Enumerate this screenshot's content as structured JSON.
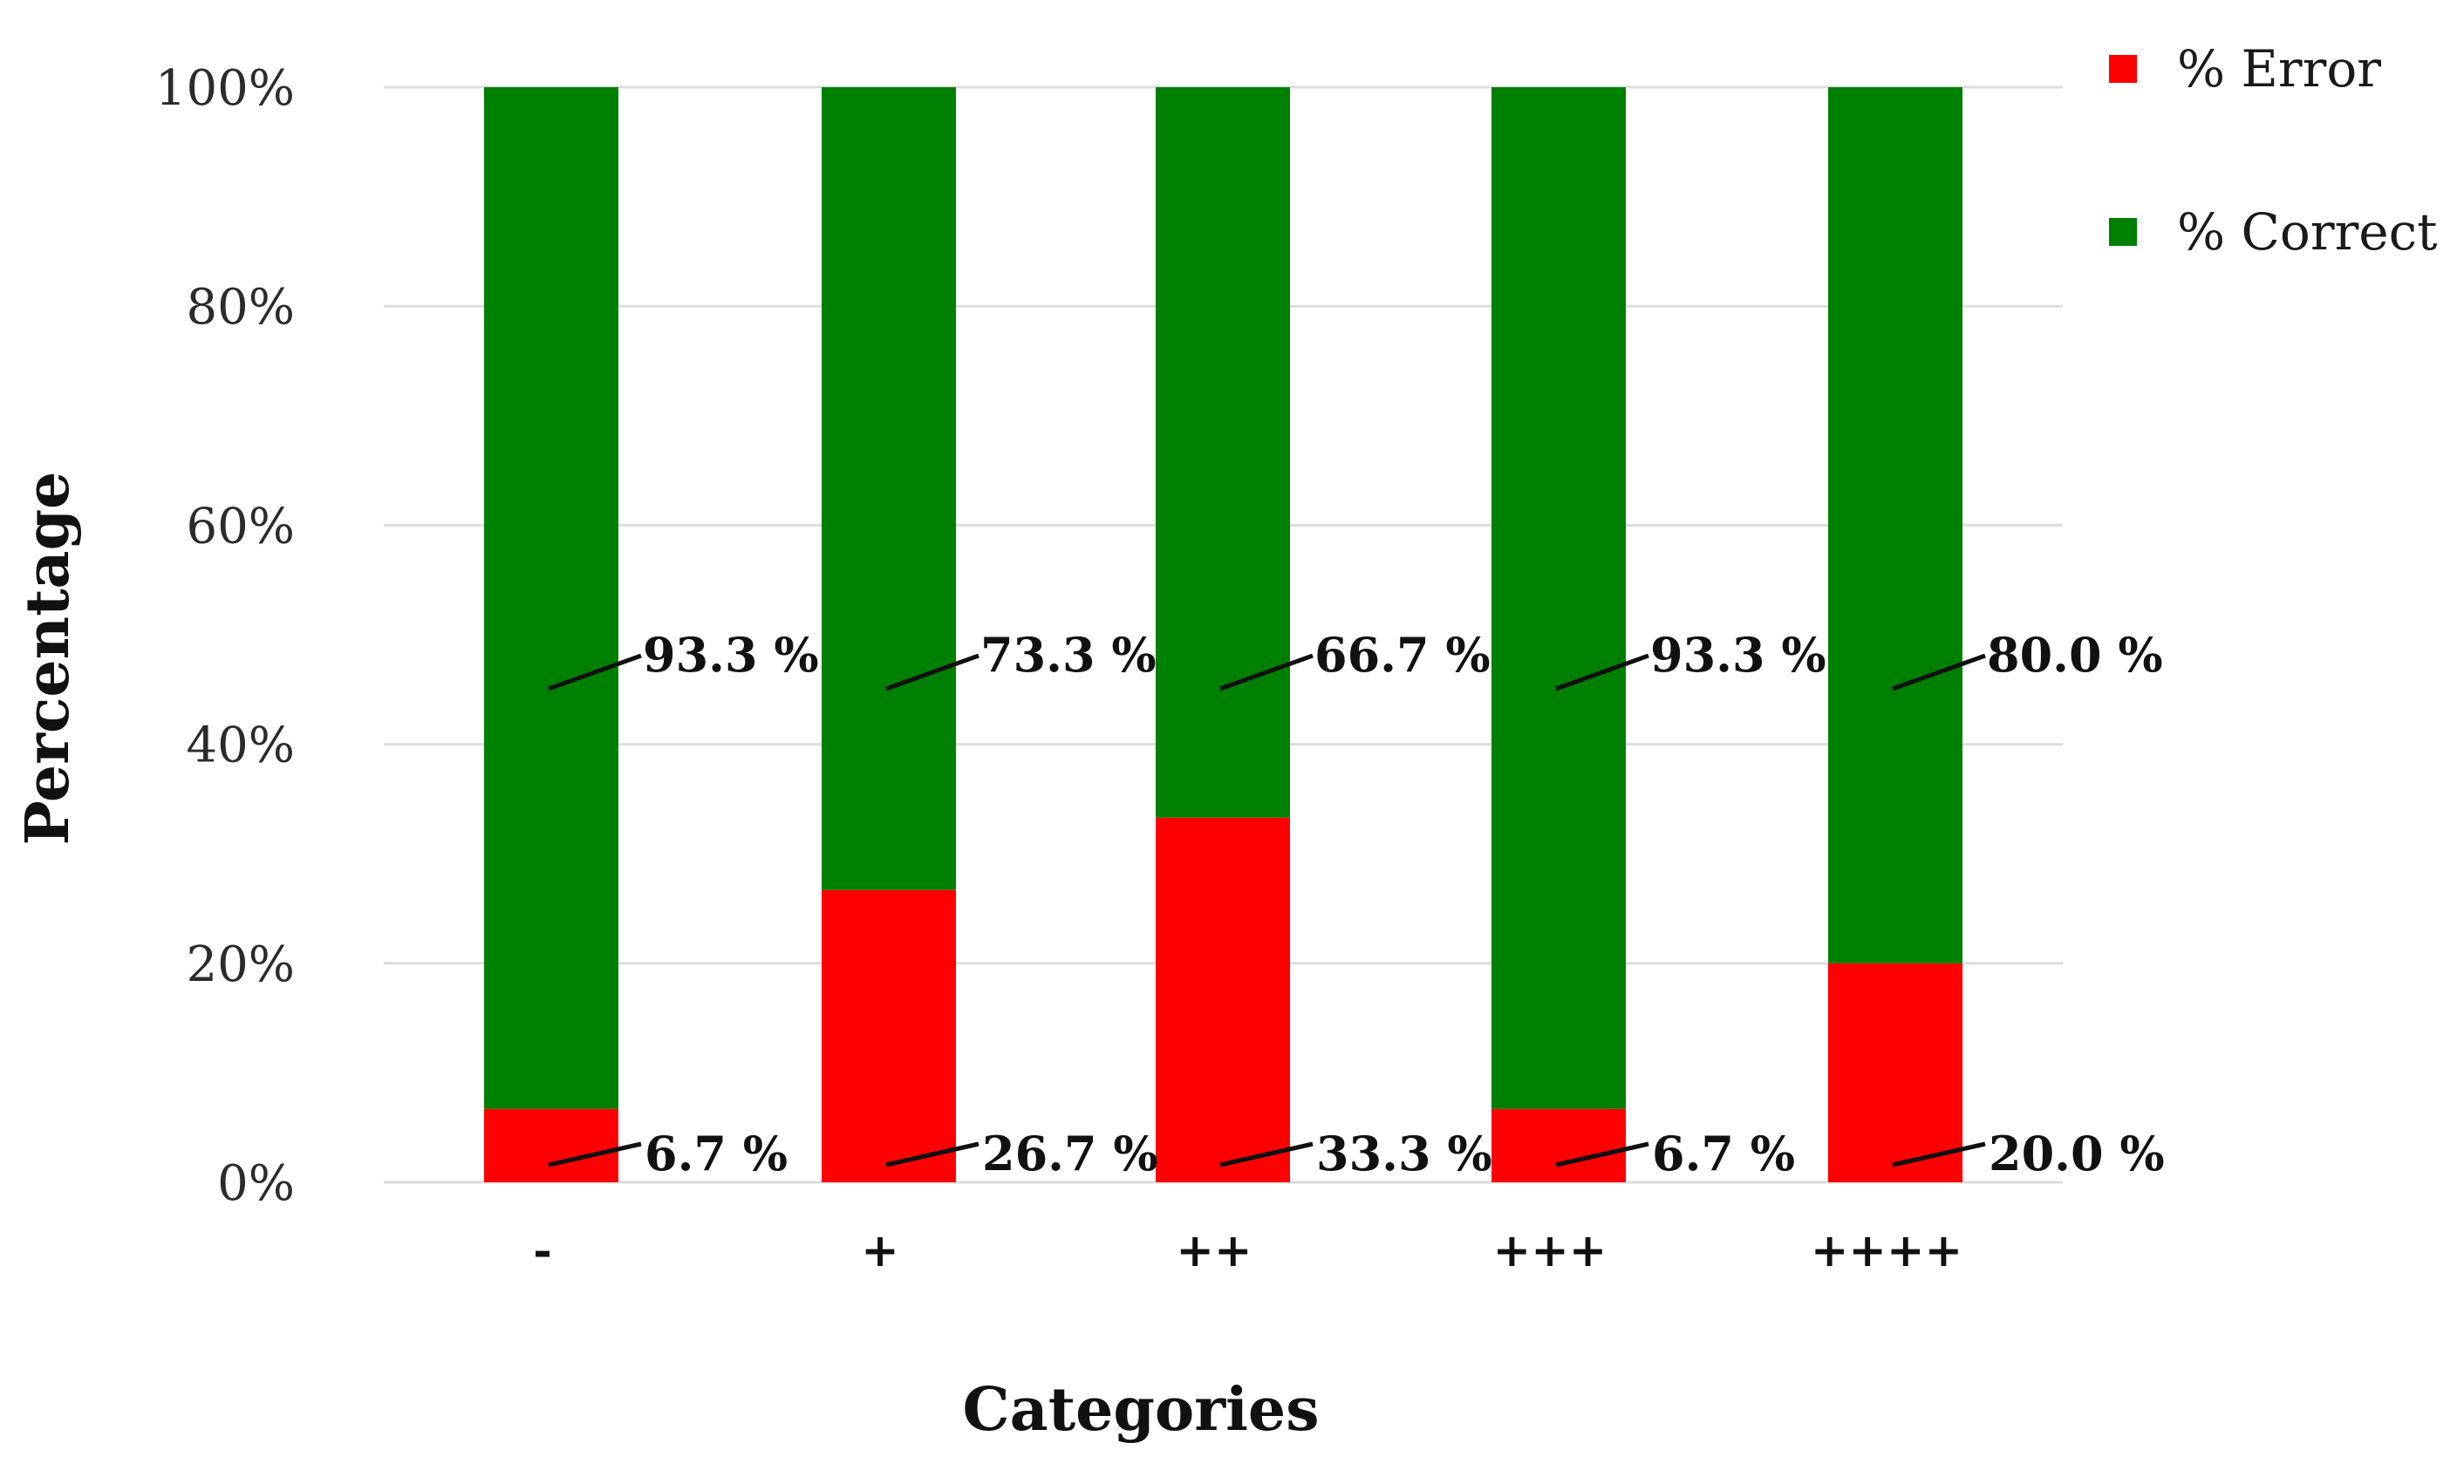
{
  "chart_data": {
    "type": "bar",
    "stacked": true,
    "categories": [
      "-",
      "+",
      "++",
      "+++",
      "++++"
    ],
    "series": [
      {
        "name": "% Error",
        "color": "#ff0000",
        "values": [
          6.7,
          26.7,
          33.3,
          6.7,
          20.0
        ]
      },
      {
        "name": "% Correct",
        "color": "#008000",
        "values": [
          93.3,
          73.3,
          66.7,
          93.3,
          80.0
        ]
      }
    ],
    "data_labels": {
      "error": [
        "6.7 %",
        "26.7 %",
        "33.3 %",
        "6.7 %",
        "20.0 %"
      ],
      "correct": [
        "93.3 %",
        "73.3 %",
        "66.7 %",
        "93.3 %",
        "80.0 %"
      ]
    },
    "yticks": [
      "0%",
      "20%",
      "40%",
      "60%",
      "80%",
      "100%"
    ],
    "ylim": [
      0,
      100
    ],
    "xlabel": "Categories",
    "ylabel": "Percentage",
    "grid": true,
    "legend_position": "top-right",
    "gridline_color": "#dddddd"
  }
}
